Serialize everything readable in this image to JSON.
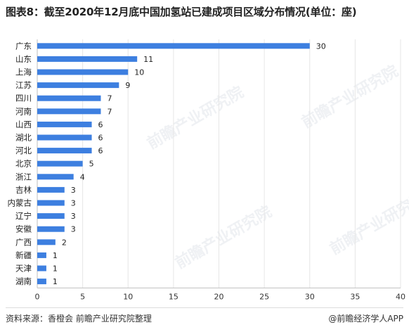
{
  "title": "图表8：截至2020年12月底中国加氢站已建成项目区域分布情况(单位：座)",
  "source": "资料来源：香橙会 前瞻产业研究院整理",
  "credit": "@前瞻经济学人APP",
  "watermark": "前瞻产业研究院",
  "chart_data": {
    "type": "bar",
    "orientation": "horizontal",
    "categories": [
      "广东",
      "山东",
      "上海",
      "江苏",
      "四川",
      "河南",
      "山西",
      "湖北",
      "河北",
      "北京",
      "浙江",
      "吉林",
      "内蒙古",
      "辽宁",
      "安徽",
      "广西",
      "新疆",
      "天津",
      "湖南"
    ],
    "values": [
      30,
      11,
      10,
      9,
      7,
      7,
      6,
      6,
      6,
      5,
      4,
      3,
      3,
      3,
      3,
      2,
      1,
      1,
      1
    ],
    "xlim": [
      0,
      40
    ],
    "xticks": [
      0,
      5,
      10,
      15,
      20,
      25,
      30,
      35,
      40
    ],
    "grid": true,
    "color": "#3d7fe0"
  }
}
